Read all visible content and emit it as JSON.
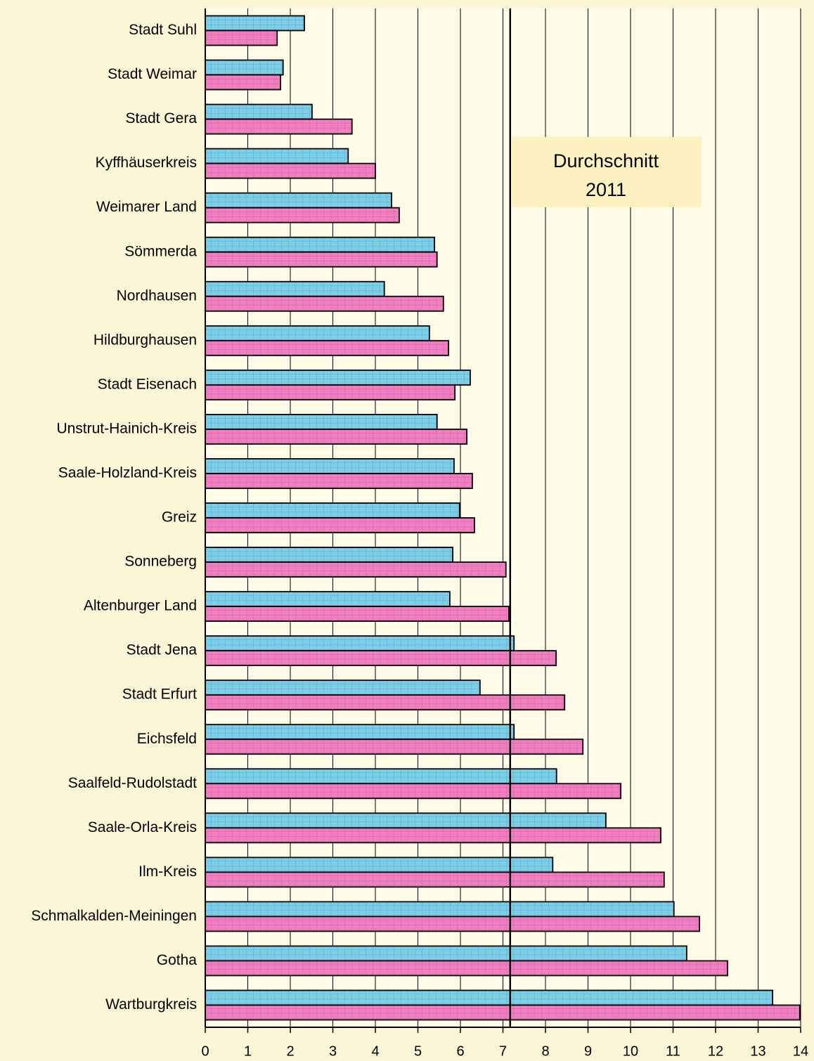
{
  "chart_data": {
    "type": "bar",
    "orientation": "horizontal",
    "categories": [
      "Stadt Suhl",
      "Stadt Weimar",
      "Stadt Gera",
      "Kyffhäuserkreis",
      "Weimarer Land",
      "Sömmerda",
      "Nordhausen",
      "Hildburghausen",
      "Stadt Eisenach",
      "Unstrut-Hainich-Kreis",
      "Saale-Holzland-Kreis",
      "Greiz",
      "Sonneberg",
      "Altenburger Land",
      "Stadt Jena",
      "Stadt Erfurt",
      "Eichsfeld",
      "Saalfeld-Rudolstadt",
      "Saale-Orla-Kreis",
      "Ilm-Kreis",
      "Schmalkalden-Meiningen",
      "Gotha",
      "Wartburgkreis"
    ],
    "series": [
      {
        "color": "#7ccfe8",
        "values": [
          2.33,
          1.83,
          2.51,
          3.36,
          4.38,
          5.39,
          4.21,
          5.27,
          6.23,
          5.45,
          5.85,
          5.98,
          5.82,
          5.75,
          7.26,
          6.46,
          7.26,
          8.26,
          9.42,
          8.17,
          11.02,
          11.32,
          13.34
        ]
      },
      {
        "color": "#f27ec2",
        "values": [
          1.69,
          1.77,
          3.45,
          4.0,
          4.56,
          5.45,
          5.6,
          5.72,
          5.87,
          6.15,
          6.28,
          6.33,
          7.07,
          7.14,
          8.25,
          8.45,
          8.88,
          9.77,
          10.71,
          10.79,
          11.62,
          12.28,
          13.98
        ]
      }
    ],
    "xlim": [
      0,
      14
    ],
    "xticks": [
      0,
      1,
      2,
      3,
      4,
      5,
      6,
      7,
      8,
      9,
      10,
      11,
      12,
      13,
      14
    ],
    "grid": true,
    "reference_line": 7.17,
    "annotation": [
      "Durchschnitt",
      "2011"
    ]
  }
}
